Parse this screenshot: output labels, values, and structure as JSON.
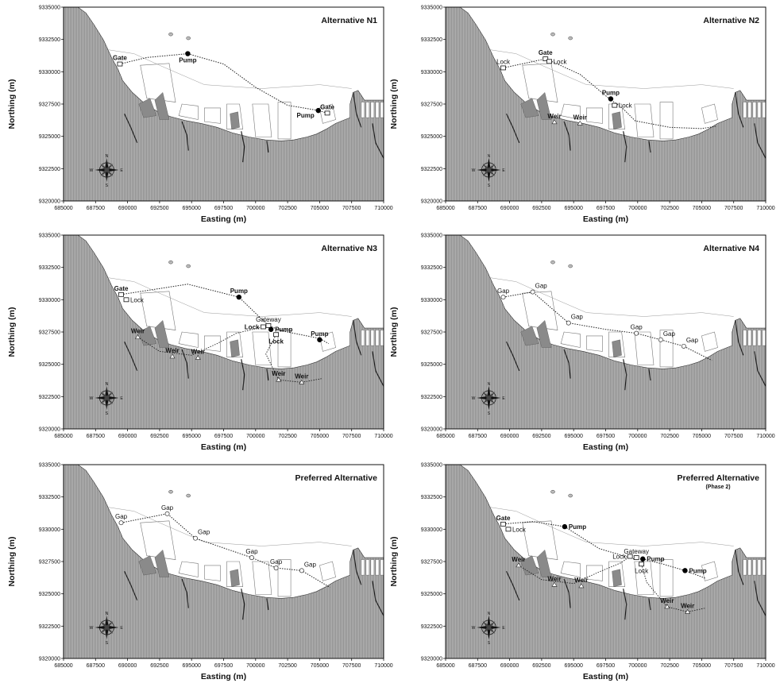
{
  "figure": {
    "x_axis_label": "Easting (m)",
    "y_axis_label": "Northing (m)",
    "x_ticks": [
      "685000",
      "687500",
      "690000",
      "692500",
      "695000",
      "697500",
      "700000",
      "702500",
      "705000",
      "707500",
      "710000"
    ],
    "y_ticks": [
      "9335000",
      "9332500",
      "9330000",
      "9327500",
      "9325000",
      "9322500",
      "9320000"
    ],
    "compass_labels": {
      "n": "N",
      "s": "S",
      "e": "E",
      "w": "W"
    },
    "colors": {
      "land": "#a8a8a8",
      "water": "#ffffff",
      "line": "#222222",
      "pump": "#000000"
    }
  },
  "panels": [
    {
      "title": "Alternative N1",
      "subtitle": "",
      "dike": [
        [
          689400,
          9330600
        ],
        [
          691500,
          9331100
        ],
        [
          694700,
          9331400
        ],
        [
          697500,
          9330600
        ],
        [
          700000,
          9328800
        ],
        [
          702500,
          9327400
        ],
        [
          704900,
          9327000
        ],
        [
          705600,
          9326800
        ]
      ],
      "features": [
        {
          "type": "lock",
          "x": 689400,
          "y": 9330600,
          "label": "Gate",
          "bold": true,
          "pos": "above"
        },
        {
          "type": "pump",
          "x": 694700,
          "y": 9331400,
          "label": "Pump",
          "bold": true,
          "pos": "below"
        },
        {
          "type": "pump",
          "x": 704900,
          "y": 9327000,
          "label": "Pump",
          "bold": true,
          "pos": "belowleft"
        },
        {
          "type": "lock",
          "x": 705600,
          "y": 9326800,
          "label": "Gate",
          "bold": true,
          "pos": "above"
        }
      ]
    },
    {
      "title": "Alternative N2",
      "subtitle": "",
      "dike": [
        [
          689500,
          9330300
        ],
        [
          692800,
          9331000
        ],
        [
          693500,
          9330700
        ],
        [
          695500,
          9329800
        ],
        [
          697800,
          9327900
        ],
        [
          698800,
          9327200
        ],
        [
          699800,
          9326200
        ],
        [
          702500,
          9325700
        ],
        [
          705000,
          9325600
        ],
        [
          706200,
          9325800
        ]
      ],
      "features": [
        {
          "type": "lock",
          "x": 689500,
          "y": 9330300,
          "label": "Lock",
          "bold": false,
          "pos": "above"
        },
        {
          "type": "lock",
          "x": 692800,
          "y": 9331000,
          "label": "Gate",
          "bold": true,
          "pos": "above"
        },
        {
          "type": "lock",
          "x": 693100,
          "y": 9330800,
          "label": "Lock",
          "bold": false,
          "pos": "right"
        },
        {
          "type": "pump",
          "x": 697900,
          "y": 9327900,
          "label": "Pump",
          "bold": true,
          "pos": "above"
        },
        {
          "type": "lock",
          "x": 698200,
          "y": 9327400,
          "label": "Lock",
          "bold": false,
          "pos": "right"
        },
        {
          "type": "weir",
          "x": 693500,
          "y": 9326100,
          "label": "Weir",
          "bold": true,
          "pos": "above"
        },
        {
          "type": "weir",
          "x": 695500,
          "y": 9326000,
          "label": "Weir",
          "bold": true,
          "pos": "above"
        }
      ]
    },
    {
      "title": "Alternative N3",
      "subtitle": "",
      "dike": [
        [
          689500,
          9330400
        ],
        [
          694700,
          9331200
        ],
        [
          698700,
          9330200
        ],
        [
          701000,
          9328000
        ],
        [
          702000,
          9327600
        ],
        [
          703500,
          9327300
        ],
        [
          705000,
          9327000
        ],
        [
          705700,
          9326600
        ]
      ],
      "features": [
        {
          "type": "lock",
          "x": 689500,
          "y": 9330400,
          "label": "Gate",
          "bold": true,
          "pos": "above"
        },
        {
          "type": "lock",
          "x": 689900,
          "y": 9330000,
          "label": "Lock",
          "bold": false,
          "pos": "right"
        },
        {
          "type": "pump",
          "x": 698700,
          "y": 9330200,
          "label": "Pump",
          "bold": true,
          "pos": "above"
        },
        {
          "type": "lock",
          "x": 701000,
          "y": 9328000,
          "label": "Gateway",
          "bold": false,
          "pos": "above"
        },
        {
          "type": "lock",
          "x": 700600,
          "y": 9327900,
          "label": "Lock",
          "bold": true,
          "pos": "left"
        },
        {
          "type": "pump",
          "x": 701200,
          "y": 9327700,
          "label": "Pump",
          "bold": true,
          "pos": "right"
        },
        {
          "type": "lock",
          "x": 701600,
          "y": 9327300,
          "label": "Lock",
          "bold": true,
          "pos": "below"
        },
        {
          "type": "pump",
          "x": 705000,
          "y": 9326900,
          "label": "Pump",
          "bold": true,
          "pos": "above"
        },
        {
          "type": "weir",
          "x": 690800,
          "y": 9327100,
          "label": "Weir",
          "bold": true,
          "pos": "above"
        },
        {
          "type": "weir",
          "x": 693500,
          "y": 9325600,
          "label": "Weir",
          "bold": true,
          "pos": "above"
        },
        {
          "type": "weir",
          "x": 695500,
          "y": 9325500,
          "label": "Weir",
          "bold": true,
          "pos": "above"
        },
        {
          "type": "weir",
          "x": 701800,
          "y": 9323800,
          "label": "Weir",
          "bold": true,
          "pos": "above"
        },
        {
          "type": "weir",
          "x": 703600,
          "y": 9323600,
          "label": "Weir",
          "bold": true,
          "pos": "above"
        }
      ],
      "extra_lines": [
        [
          [
            690800,
            9327100
          ],
          [
            692500,
            9326000
          ],
          [
            695000,
            9325700
          ],
          [
            697000,
            9326600
          ],
          [
            698500,
            9327400
          ],
          [
            700600,
            9327900
          ]
        ],
        [
          [
            701600,
            9327300
          ],
          [
            700800,
            9325800
          ],
          [
            701800,
            9323800
          ],
          [
            703600,
            9323600
          ],
          [
            705200,
            9323900
          ]
        ]
      ]
    },
    {
      "title": "Alternative N4",
      "subtitle": "",
      "dike": [
        [
          689500,
          9330200
        ],
        [
          691800,
          9330600
        ],
        [
          694600,
          9328200
        ],
        [
          697500,
          9327700
        ],
        [
          699900,
          9327400
        ],
        [
          701800,
          9326900
        ],
        [
          703600,
          9326400
        ],
        [
          705800,
          9325300
        ]
      ],
      "features": [
        {
          "type": "gap",
          "x": 689500,
          "y": 9330200,
          "label": "Gap",
          "bold": false,
          "pos": "above"
        },
        {
          "type": "gap",
          "x": 691800,
          "y": 9330600,
          "label": "Gap",
          "bold": false,
          "pos": "aboveright"
        },
        {
          "type": "gap",
          "x": 694600,
          "y": 9328200,
          "label": "Gap",
          "bold": false,
          "pos": "aboveright"
        },
        {
          "type": "gap",
          "x": 699900,
          "y": 9327400,
          "label": "Gap",
          "bold": false,
          "pos": "above"
        },
        {
          "type": "gap",
          "x": 701800,
          "y": 9326900,
          "label": "Gap",
          "bold": false,
          "pos": "aboveright"
        },
        {
          "type": "gap",
          "x": 703600,
          "y": 9326400,
          "label": "Gap",
          "bold": false,
          "pos": "aboveright"
        }
      ]
    },
    {
      "title": "Preferred Alternative",
      "subtitle": "",
      "dike": [
        [
          689500,
          9330500
        ],
        [
          693100,
          9331200
        ],
        [
          695300,
          9329300
        ],
        [
          699700,
          9327800
        ],
        [
          701600,
          9327000
        ],
        [
          703600,
          9326800
        ],
        [
          705800,
          9325500
        ]
      ],
      "features": [
        {
          "type": "gap",
          "x": 689500,
          "y": 9330500,
          "label": "Gap",
          "bold": false,
          "pos": "above"
        },
        {
          "type": "gap",
          "x": 693100,
          "y": 9331200,
          "label": "Gap",
          "bold": false,
          "pos": "above"
        },
        {
          "type": "gap",
          "x": 695300,
          "y": 9329300,
          "label": "Gap",
          "bold": false,
          "pos": "aboveright"
        },
        {
          "type": "gap",
          "x": 699700,
          "y": 9327800,
          "label": "Gap",
          "bold": false,
          "pos": "above"
        },
        {
          "type": "gap",
          "x": 701600,
          "y": 9327000,
          "label": "Gap",
          "bold": false,
          "pos": "above"
        },
        {
          "type": "gap",
          "x": 703600,
          "y": 9326800,
          "label": "Gap",
          "bold": false,
          "pos": "aboveright"
        }
      ]
    },
    {
      "title": "Preferred Alternative",
      "subtitle": "(Phase 2)",
      "dike": [
        [
          689500,
          9330400
        ],
        [
          691800,
          9330600
        ],
        [
          694300,
          9330200
        ],
        [
          697000,
          9328500
        ],
        [
          699700,
          9327700
        ],
        [
          700400,
          9327700
        ],
        [
          702000,
          9327300
        ],
        [
          703700,
          9326800
        ],
        [
          705300,
          9326200
        ]
      ],
      "features": [
        {
          "type": "lock",
          "x": 689500,
          "y": 9330400,
          "label": "Gate",
          "bold": true,
          "pos": "above"
        },
        {
          "type": "lock",
          "x": 689900,
          "y": 9330000,
          "label": "Lock",
          "bold": false,
          "pos": "right"
        },
        {
          "type": "pump",
          "x": 694300,
          "y": 9330200,
          "label": "Pump",
          "bold": true,
          "pos": "right"
        },
        {
          "type": "lock",
          "x": 699400,
          "y": 9327900,
          "label": "Lock",
          "bold": false,
          "pos": "left"
        },
        {
          "type": "lock",
          "x": 699900,
          "y": 9327800,
          "label": "Gateway",
          "bold": false,
          "pos": "above"
        },
        {
          "type": "pump",
          "x": 700400,
          "y": 9327700,
          "label": "Pump",
          "bold": true,
          "pos": "right"
        },
        {
          "type": "lock",
          "x": 700300,
          "y": 9327300,
          "label": "Lock",
          "bold": false,
          "pos": "below"
        },
        {
          "type": "pump",
          "x": 703700,
          "y": 9326800,
          "label": "Pump",
          "bold": true,
          "pos": "right"
        },
        {
          "type": "weir",
          "x": 690700,
          "y": 9327200,
          "label": "Weir",
          "bold": true,
          "pos": "above"
        },
        {
          "type": "weir",
          "x": 693500,
          "y": 9325700,
          "label": "Weir",
          "bold": true,
          "pos": "above"
        },
        {
          "type": "weir",
          "x": 695600,
          "y": 9325600,
          "label": "Weir",
          "bold": true,
          "pos": "above"
        },
        {
          "type": "weir",
          "x": 702300,
          "y": 9324000,
          "label": "Weir",
          "bold": true,
          "pos": "above"
        },
        {
          "type": "weir",
          "x": 703900,
          "y": 9323600,
          "label": "Weir",
          "bold": true,
          "pos": "above"
        }
      ],
      "extra_lines": [
        [
          [
            690700,
            9327200
          ],
          [
            692500,
            9326100
          ],
          [
            695000,
            9325800
          ],
          [
            697000,
            9326700
          ],
          [
            698700,
            9327400
          ],
          [
            699400,
            9327900
          ]
        ],
        [
          [
            700300,
            9327300
          ],
          [
            700700,
            9325900
          ],
          [
            702300,
            9324000
          ],
          [
            703900,
            9323600
          ],
          [
            705300,
            9323900
          ]
        ]
      ]
    }
  ]
}
